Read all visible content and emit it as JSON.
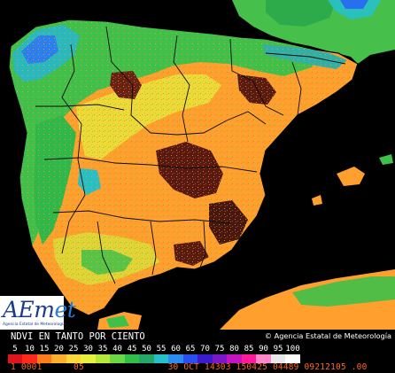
{
  "logo": {
    "word_main": "AEm",
    "word_accent": "et",
    "subtitle": "Agencia Estatal de Meteorología"
  },
  "legend": {
    "title": "NDVI EN TANTO POR CIENTO",
    "copyright": "© Agencia Estatal de Meteorología",
    "ticks": [
      "5",
      "10",
      "15",
      "20",
      "25",
      "30",
      "35",
      "40",
      "45",
      "50",
      "55",
      "60",
      "65",
      "70",
      "75",
      "80",
      "85",
      "90",
      "95",
      "100"
    ],
    "colors": [
      "#e0141c",
      "#ff2a1c",
      "#ff7a1a",
      "#ffae2e",
      "#ffd83a",
      "#e9f03a",
      "#b6e83c",
      "#6ad844",
      "#2fc04a",
      "#24a86a",
      "#27c0c8",
      "#2a8cf0",
      "#2a4ef0",
      "#3a1ccc",
      "#7a18c8",
      "#c414c0",
      "#ff1a9a",
      "#ff86c8",
      "#e8e8e8",
      "#ffffff"
    ]
  },
  "product_line": "1 0001      05                30 OCT 14303 150425 04489 09212105 .00"
}
